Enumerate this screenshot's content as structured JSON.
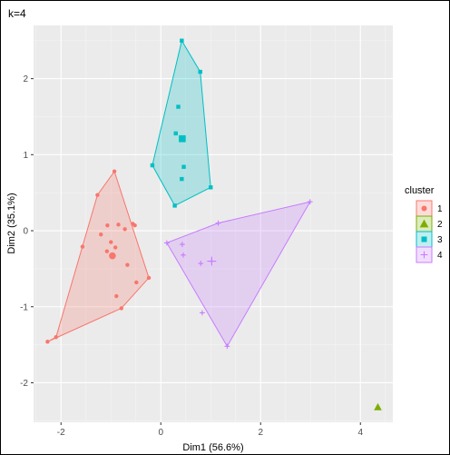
{
  "chart_data": {
    "type": "scatter",
    "title": "k=4",
    "xlabel": "Dim1 (56.6%)",
    "ylabel": "Dim2 (35.1%)",
    "xlim": [
      -2.55,
      4.65
    ],
    "ylim": [
      -2.52,
      2.7
    ],
    "x_ticks": [
      -2,
      0,
      2,
      4
    ],
    "y_ticks": [
      -2,
      -1,
      0,
      1,
      2
    ],
    "grid": true,
    "legend_title": "cluster",
    "legend_position": "right",
    "series": [
      {
        "name": "1",
        "color": "#F8766D",
        "shape": "circle",
        "points": [
          [
            -0.93,
            0.78
          ],
          [
            -1.27,
            0.47
          ],
          [
            -0.85,
            0.08
          ],
          [
            -0.56,
            0.09
          ],
          [
            -0.52,
            0.07
          ],
          [
            -1.07,
            0.07
          ],
          [
            -0.72,
            0.02
          ],
          [
            -1.2,
            -0.05
          ],
          [
            -1.0,
            -0.15
          ],
          [
            -1.57,
            -0.21
          ],
          [
            -0.91,
            -0.22
          ],
          [
            -1.08,
            -0.27
          ],
          [
            -0.67,
            -0.45
          ],
          [
            -0.24,
            -0.62
          ],
          [
            -0.49,
            -0.68
          ],
          [
            -0.89,
            -0.86
          ],
          [
            -0.79,
            -1.02
          ],
          [
            -2.1,
            -1.4
          ],
          [
            -2.27,
            -1.46
          ]
        ],
        "centroid": [
          -0.97,
          -0.33
        ],
        "hull": [
          [
            -0.93,
            0.78
          ],
          [
            -0.24,
            -0.62
          ],
          [
            -0.79,
            -1.02
          ],
          [
            -2.27,
            -1.46
          ],
          [
            -2.1,
            -1.4
          ],
          [
            -1.27,
            0.47
          ]
        ]
      },
      {
        "name": "2",
        "color": "#7CAE00",
        "shape": "triangle",
        "points": [
          [
            4.35,
            -2.32
          ]
        ],
        "centroid": null,
        "hull": []
      },
      {
        "name": "3",
        "color": "#00BFC4",
        "shape": "square",
        "points": [
          [
            0.42,
            2.5
          ],
          [
            0.79,
            2.09
          ],
          [
            0.35,
            1.63
          ],
          [
            0.3,
            1.28
          ],
          [
            0.46,
            0.84
          ],
          [
            -0.17,
            0.86
          ],
          [
            0.42,
            0.68
          ],
          [
            1.0,
            0.57
          ],
          [
            0.28,
            0.33
          ]
        ],
        "centroid": [
          0.43,
          1.21
        ],
        "hull": [
          [
            0.42,
            2.5
          ],
          [
            0.79,
            2.09
          ],
          [
            1.0,
            0.57
          ],
          [
            0.28,
            0.33
          ],
          [
            -0.17,
            0.86
          ]
        ]
      },
      {
        "name": "4",
        "color": "#C77CFF",
        "shape": "cross",
        "points": [
          [
            2.99,
            0.38
          ],
          [
            1.15,
            0.1
          ],
          [
            0.12,
            -0.16
          ],
          [
            0.43,
            -0.18
          ],
          [
            0.45,
            -0.32
          ],
          [
            1.02,
            -0.4
          ],
          [
            0.8,
            -0.43
          ],
          [
            0.83,
            -1.08
          ],
          [
            1.33,
            -1.52
          ]
        ],
        "centroid": [
          1.02,
          -0.4
        ],
        "hull": [
          [
            2.99,
            0.38
          ],
          [
            1.33,
            -1.52
          ],
          [
            0.12,
            -0.16
          ],
          [
            1.15,
            0.1
          ]
        ]
      }
    ]
  }
}
